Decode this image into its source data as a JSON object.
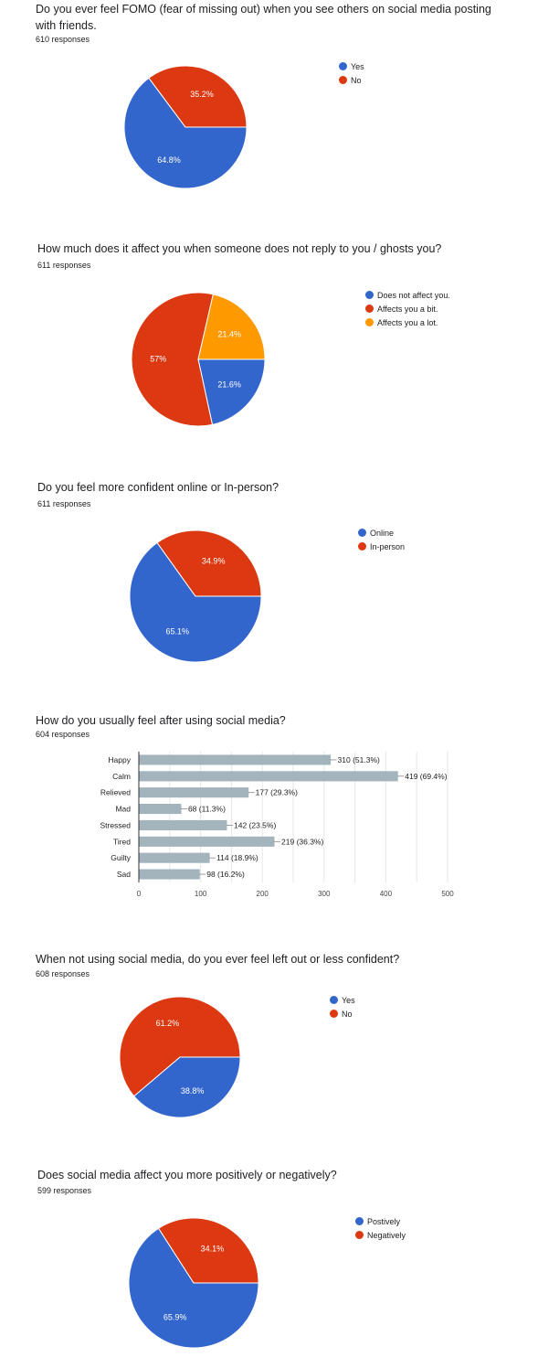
{
  "colors": {
    "blue": "#3366cc",
    "red": "#dc3912",
    "orange": "#ff9900",
    "bar": "#a3b4bd"
  },
  "questions": [
    {
      "title": "Do you ever feel FOMO (fear of missing out) when you see others on social media posting with friends.",
      "responses": "610 responses"
    },
    {
      "title": "How much does it affect you when someone does not reply to you / ghosts you?",
      "responses": "611 responses"
    },
    {
      "title": "Do you feel more confident online or In-person?",
      "responses": "611 responses"
    },
    {
      "title": "How do you usually feel after using social media?",
      "responses": "604 responses"
    },
    {
      "title": "When not using social media, do you ever feel left out or less confident?",
      "responses": "608 responses"
    },
    {
      "title": "Does social media affect you more positively or negatively?",
      "responses": "599 responses"
    }
  ],
  "chart_data": [
    {
      "type": "pie",
      "slices": [
        {
          "label": "Yes",
          "value": 64.8,
          "pct_label": "64.8%",
          "color": "#3366cc"
        },
        {
          "label": "No",
          "value": 35.2,
          "pct_label": "35.2%",
          "color": "#dc3912"
        }
      ]
    },
    {
      "type": "pie",
      "slices": [
        {
          "label": "Does not affect you.",
          "value": 21.6,
          "pct_label": "21.6%",
          "color": "#3366cc"
        },
        {
          "label": "Affects you a bit.",
          "value": 57,
          "pct_label": "57%",
          "color": "#dc3912"
        },
        {
          "label": "Affects you a lot.",
          "value": 21.4,
          "pct_label": "21.4%",
          "color": "#ff9900"
        }
      ]
    },
    {
      "type": "pie",
      "slices": [
        {
          "label": "Online",
          "value": 65.1,
          "pct_label": "65.1%",
          "color": "#3366cc"
        },
        {
          "label": "In-person",
          "value": 34.9,
          "pct_label": "34.9%",
          "color": "#dc3912"
        }
      ]
    },
    {
      "type": "bar",
      "orientation": "horizontal",
      "categories": [
        "Happy",
        "Calm",
        "Relieved",
        "Mad",
        "Stressed",
        "Tired",
        "Guilty",
        "Sad"
      ],
      "values": [
        310,
        419,
        177,
        68,
        142,
        219,
        114,
        98
      ],
      "data_labels": [
        "310 (51.3%)",
        "419 (69.4%)",
        "177 (29.3%)",
        "68 (11.3%)",
        "142 (23.5%)",
        "219 (36.3%)",
        "114 (18.9%)",
        "98 (16.2%)"
      ],
      "xlim": [
        0,
        500
      ],
      "xticks": [
        "0",
        "100",
        "200",
        "300",
        "400",
        "500"
      ],
      "grid": true
    },
    {
      "type": "pie",
      "slices": [
        {
          "label": "Yes",
          "value": 38.8,
          "pct_label": "38.8%",
          "color": "#3366cc"
        },
        {
          "label": "No",
          "value": 61.2,
          "pct_label": "61.2%",
          "color": "#dc3912"
        }
      ]
    },
    {
      "type": "pie",
      "slices": [
        {
          "label": "Postively",
          "value": 65.9,
          "pct_label": "65.9%",
          "color": "#3366cc"
        },
        {
          "label": "Negatively",
          "value": 34.1,
          "pct_label": "34.1%",
          "color": "#dc3912"
        }
      ]
    }
  ]
}
